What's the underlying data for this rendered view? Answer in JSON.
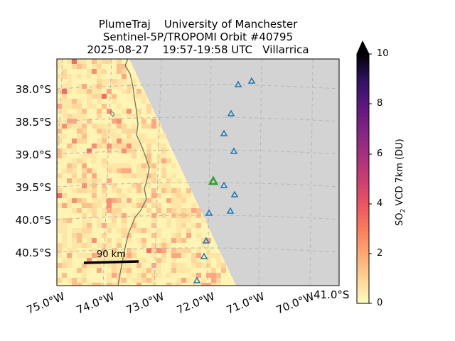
{
  "title": {
    "line1": "PlumeTraj    University of Manchester",
    "line2": "Sentinel-5P/TROPOMI Orbit #40795",
    "line3": "2025-08-27    19:57-19:58 UTC   Villarrica"
  },
  "map": {
    "lat_labels": [
      "38.0°S",
      "38.5°S",
      "39.0°S",
      "39.5°S",
      "40.0°S",
      "40.5°S"
    ],
    "lon_labels": [
      "75.0°W",
      "74.0°W",
      "73.0°W",
      "72.0°W",
      "71.0°W",
      "70.0°W"
    ],
    "corner_lat_label": "41.0°S",
    "scale_bar_label": "90 km",
    "no_data_color": "#d3d3d3",
    "coastline_color": "#6b7b5e",
    "volcano_marker_color": "#1f77b4",
    "target_volcano_color": "#2ca02c",
    "target_volcano": "Villarrica"
  },
  "colorbar": {
    "label_main": "SO",
    "label_sub": "2",
    "label_rest": " VCD 7km (DU)",
    "ticks": [
      "0",
      "2",
      "4",
      "6",
      "8",
      "10"
    ],
    "colormap": "magma_r",
    "extend": "max",
    "min": 0,
    "max": 10
  }
}
